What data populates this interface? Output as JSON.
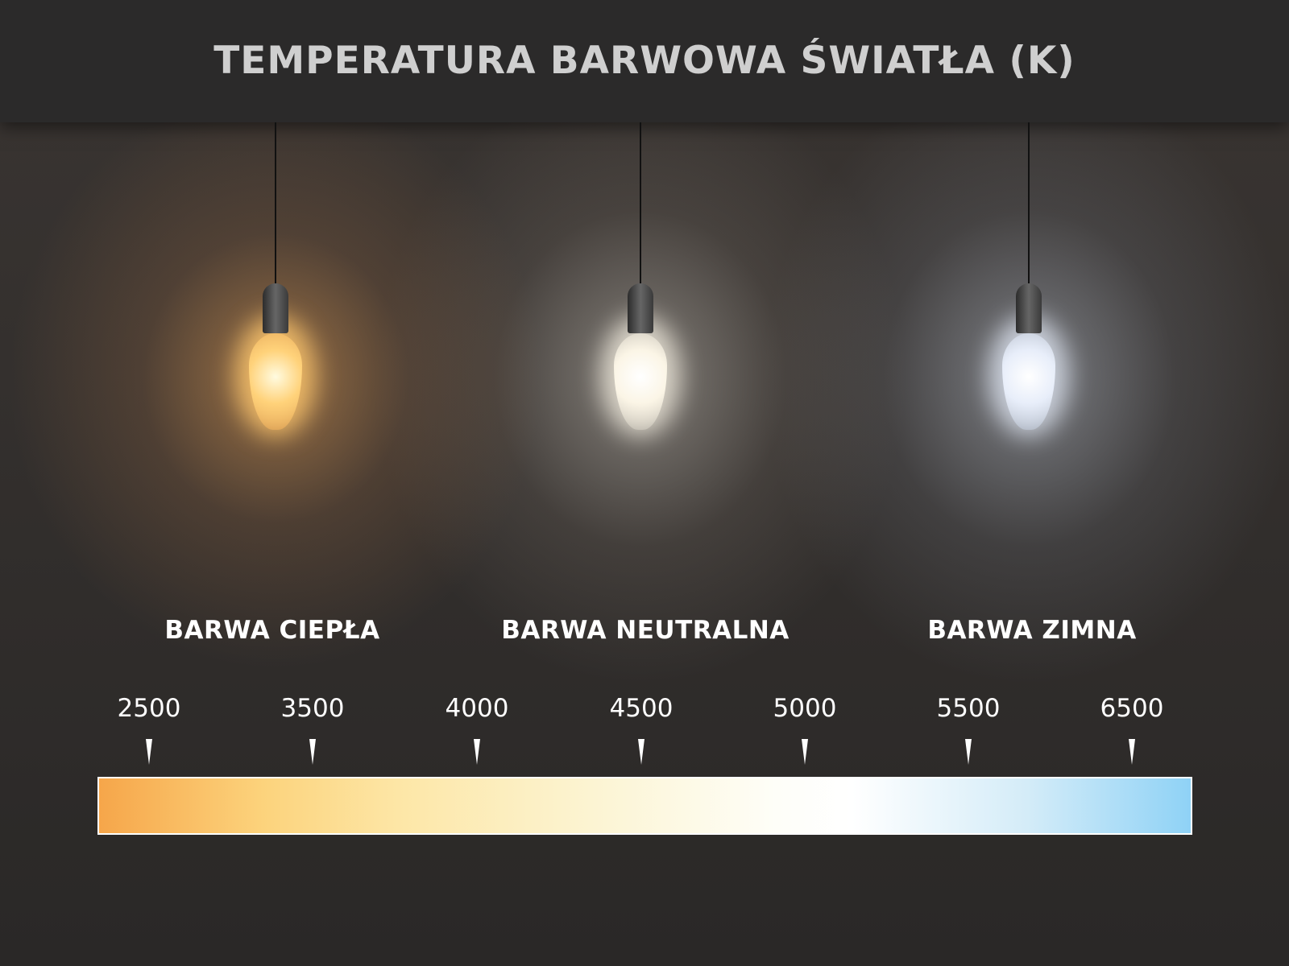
{
  "title": "TEMPERATURA BARWOWA ŚWIATŁA (K)",
  "bulbs": [
    {
      "name": "warm",
      "color": "#ffd98a"
    },
    {
      "name": "neutral",
      "color": "#fffbef"
    },
    {
      "name": "cool",
      "color": "#eef4ff"
    }
  ],
  "categories": [
    "BARWA CIEPŁA",
    "BARWA NEUTRALNA",
    "BARWA ZIMNA"
  ],
  "scale": {
    "ticks": [
      "2500",
      "3500",
      "4000",
      "4500",
      "5000",
      "5500",
      "6500"
    ],
    "gradient_colors": [
      "#f6a64a",
      "#fcd37c",
      "#fefef8",
      "#8fd2f6"
    ]
  }
}
